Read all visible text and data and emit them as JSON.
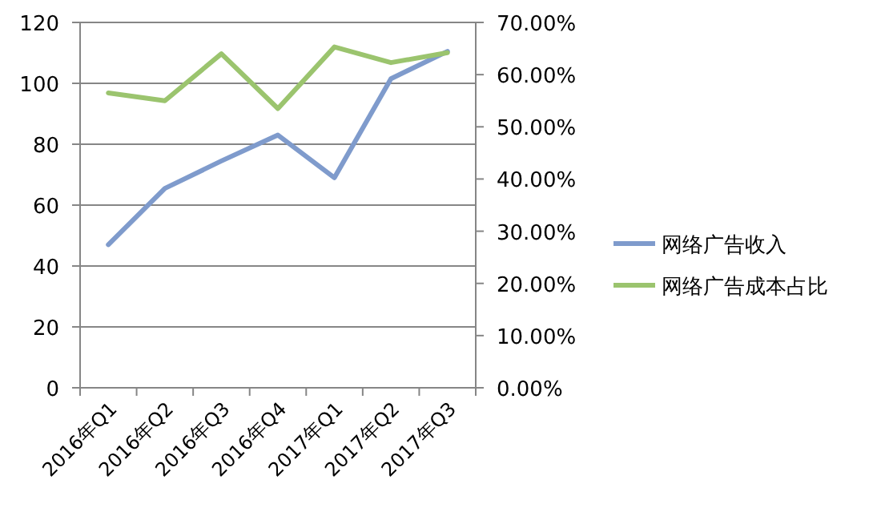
{
  "chart_data": {
    "type": "line",
    "categories": [
      "2016年Q1",
      "2016年Q2",
      "2016年Q3",
      "2016年Q4",
      "2017年Q1",
      "2017年Q2",
      "2017年Q3"
    ],
    "series": [
      {
        "name": "网络广告收入",
        "color": "#7f9bcc",
        "values": [
          47,
          65.5,
          74.5,
          83,
          69,
          101.5,
          110.5
        ]
      },
      {
        "name": "网络广告成本占比",
        "color": "#9bc46e",
        "axis": "y2",
        "values": [
          56.5,
          55,
          64,
          53.5,
          65.3,
          62.3,
          64.2
        ]
      }
    ],
    "ylim": [
      0,
      120
    ],
    "yticks": [
      0,
      20,
      40,
      60,
      80,
      100,
      120
    ],
    "y2lim": [
      0,
      70
    ],
    "y2ticks": [
      {
        "value": 0,
        "label": "0.00%"
      },
      {
        "value": 10,
        "label": "10.00%"
      },
      {
        "value": 20,
        "label": "20.00%"
      },
      {
        "value": 30,
        "label": "30.00%"
      },
      {
        "value": 40,
        "label": "40.00%"
      },
      {
        "value": 50,
        "label": "50.00%"
      },
      {
        "value": 60,
        "label": "60.00%"
      },
      {
        "value": 70,
        "label": "70.00%"
      }
    ],
    "grid": "y",
    "legend": "right",
    "marker": "none",
    "line_style": "solid"
  }
}
